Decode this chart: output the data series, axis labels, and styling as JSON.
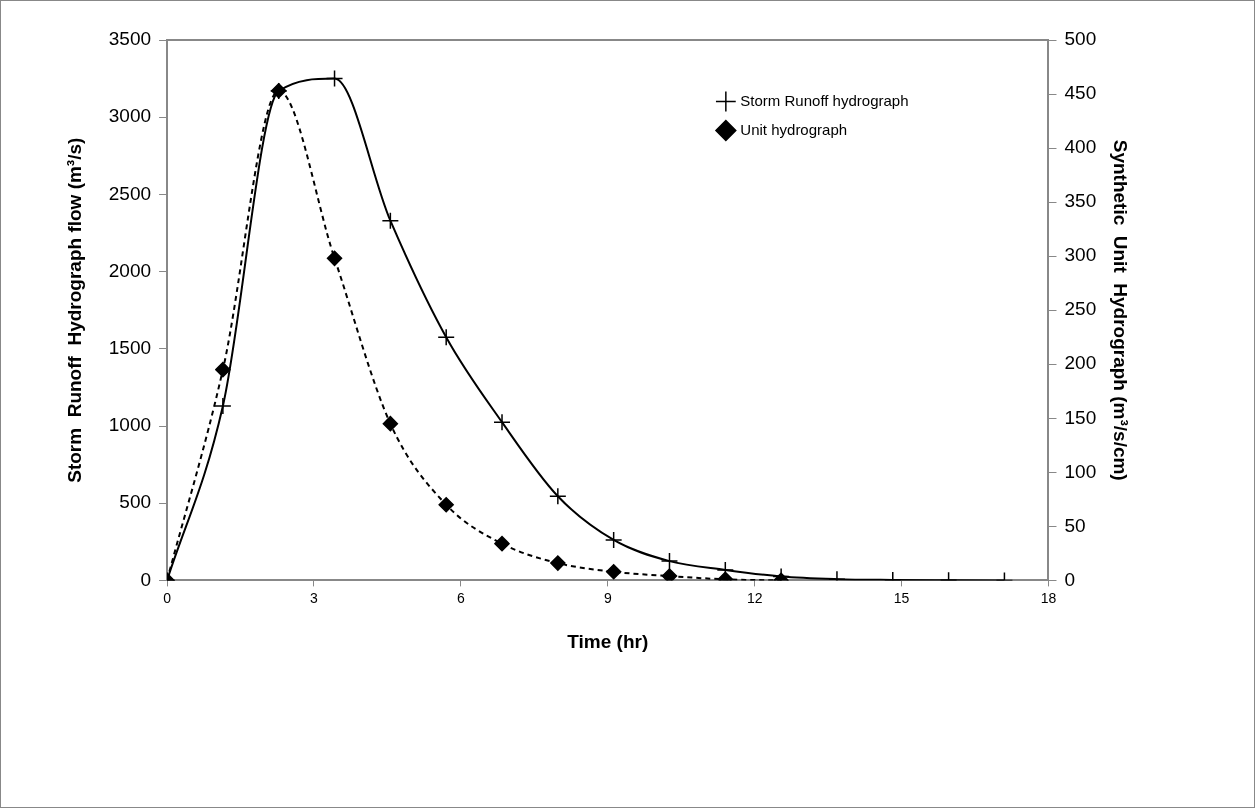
{
  "chart_data": {
    "type": "line",
    "xlabel": "Time (hr)",
    "ylabel": "Storm  Runoff  Hydrograph flow (m³/s)",
    "y2label": "Synthetic  Unit  Hydrograph (m³/s/cm)",
    "x": [
      0,
      1.14,
      2.28,
      3.42,
      4.56,
      5.7,
      6.84,
      7.98,
      9.12,
      10.26,
      11.4,
      12.54,
      13.68,
      14.82,
      15.96,
      17.1
    ],
    "series": [
      {
        "name": "Storm Runoff hydrograph",
        "color": "#000000",
        "marker": "cross",
        "line_style": "solid",
        "values": [
          0,
          1130,
          3170,
          3250,
          2330,
          1575,
          1025,
          545,
          262,
          125,
          68,
          25,
          8,
          3,
          1,
          0
        ]
      },
      {
        "name": "Unit hydrograph",
        "color": "#000000",
        "marker": "diamond",
        "line_style": "dashed",
        "axis": "y2",
        "values": [
          0,
          195,
          453,
          298,
          145,
          70,
          34,
          16,
          8,
          4,
          1,
          0,
          null,
          null,
          null,
          null
        ]
      }
    ],
    "xlim": [
      0,
      18
    ],
    "xticks": [
      0,
      3,
      6,
      9,
      12,
      15,
      18
    ],
    "ylim": [
      0,
      3500
    ],
    "yticks": [
      0,
      500,
      1000,
      1500,
      2000,
      2500,
      3000,
      3500
    ],
    "y2lim": [
      0,
      500
    ],
    "y2ticks": [
      0,
      50,
      100,
      150,
      200,
      250,
      300,
      350,
      400,
      450,
      500
    ],
    "grid": false,
    "legend": "top right"
  }
}
